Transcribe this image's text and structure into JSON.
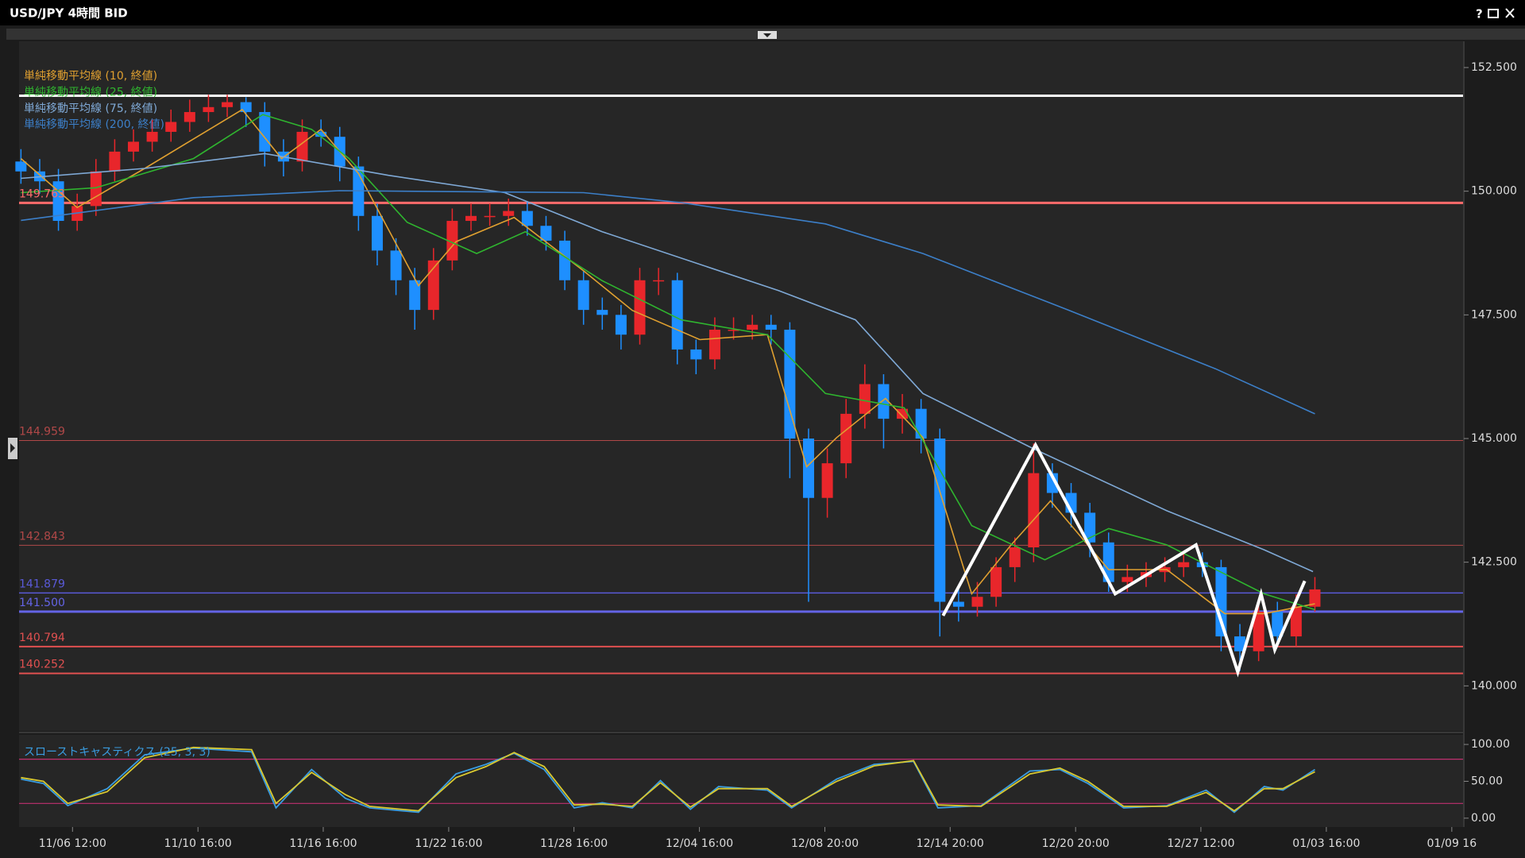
{
  "window_title": "USD/JPY 4時間 BID",
  "help_button": "?",
  "chart_data": [
    {
      "type": "candlestick",
      "xlim": [
        -0.1,
        76.9
      ],
      "ylim": [
        139.09,
        153.03
      ],
      "yticks": [
        {
          "value": 140,
          "label": "140.000"
        },
        {
          "value": 142.5,
          "label": "142.500"
        },
        {
          "value": 145,
          "label": "145.000"
        },
        {
          "value": 147.5,
          "label": "147.500"
        },
        {
          "value": 150,
          "label": "150.000"
        },
        {
          "value": 152.5,
          "label": "152.500"
        }
      ],
      "up_color": "#e8262b",
      "down_color": "#1e8fff",
      "x": [
        0,
        1,
        2,
        3,
        4,
        5,
        6,
        7,
        8,
        9,
        10,
        11,
        12,
        13,
        14,
        15,
        16,
        17,
        18,
        19,
        20,
        21,
        22,
        23,
        24,
        25,
        26,
        27,
        28,
        29,
        30,
        31,
        32,
        33,
        34,
        35,
        36,
        37,
        38,
        39,
        40,
        41,
        42,
        43,
        44,
        45,
        46,
        47,
        48,
        49,
        50,
        51,
        52,
        53,
        54,
        55,
        56,
        57,
        58,
        59,
        60,
        61,
        62,
        63,
        64,
        65,
        66,
        67,
        68,
        69
      ],
      "open": [
        150.6,
        150.4,
        150.2,
        149.4,
        149.7,
        150.4,
        150.8,
        151.0,
        151.2,
        151.4,
        151.6,
        151.7,
        151.8,
        151.6,
        150.8,
        150.6,
        151.2,
        151.1,
        150.5,
        149.5,
        148.8,
        148.2,
        147.6,
        148.6,
        149.4,
        149.5,
        149.5,
        149.6,
        149.3,
        149.0,
        148.2,
        147.6,
        147.5,
        147.1,
        148.2,
        148.2,
        146.8,
        146.6,
        147.2,
        147.2,
        147.3,
        147.2,
        145.0,
        143.8,
        144.5,
        145.5,
        146.1,
        145.4,
        145.6,
        145.0,
        141.7,
        141.6,
        141.8,
        142.4,
        142.8,
        144.3,
        143.9,
        143.5,
        142.9,
        142.1,
        142.2,
        142.3,
        142.4,
        142.5,
        142.4,
        141.0,
        140.7,
        141.5,
        141.0,
        141.6
      ],
      "high": [
        150.85,
        150.65,
        150.45,
        149.95,
        150.65,
        151.05,
        151.25,
        151.45,
        151.65,
        151.85,
        151.95,
        151.95,
        151.9,
        151.8,
        151.05,
        151.45,
        151.45,
        151.3,
        150.7,
        149.75,
        149.05,
        148.45,
        148.85,
        149.65,
        149.75,
        149.75,
        149.85,
        149.8,
        149.5,
        149.2,
        148.4,
        147.85,
        147.7,
        148.45,
        148.45,
        148.35,
        147.0,
        147.45,
        147.45,
        147.5,
        147.5,
        147.35,
        145.2,
        144.8,
        145.8,
        146.5,
        146.3,
        145.9,
        145.8,
        145.2,
        142.0,
        142.1,
        142.6,
        143.0,
        144.9,
        144.5,
        144.1,
        143.7,
        143.1,
        142.45,
        142.5,
        142.6,
        142.7,
        142.7,
        142.55,
        141.25,
        141.75,
        141.7,
        141.85,
        142.2
      ],
      "low": [
        150.15,
        149.95,
        149.2,
        149.2,
        149.5,
        150.2,
        150.6,
        150.8,
        151.0,
        151.2,
        151.4,
        151.5,
        151.3,
        150.5,
        150.3,
        150.4,
        150.9,
        150.2,
        149.2,
        148.5,
        147.9,
        147.2,
        147.4,
        148.4,
        149.2,
        149.3,
        149.3,
        149.1,
        148.8,
        148.0,
        147.3,
        147.2,
        146.8,
        146.9,
        147.9,
        146.5,
        146.3,
        146.4,
        147.0,
        147.0,
        146.9,
        144.2,
        141.7,
        143.4,
        144.2,
        145.2,
        144.8,
        145.1,
        144.7,
        141.0,
        141.3,
        141.4,
        141.6,
        142.1,
        142.5,
        143.6,
        143.2,
        142.6,
        141.9,
        141.9,
        142.0,
        142.1,
        142.2,
        142.2,
        140.7,
        140.3,
        140.5,
        140.8,
        140.8,
        141.5
      ],
      "close": [
        150.4,
        150.2,
        149.4,
        149.7,
        150.4,
        150.8,
        151.0,
        151.2,
        151.4,
        151.6,
        151.7,
        151.8,
        151.6,
        150.8,
        150.6,
        151.2,
        151.1,
        150.5,
        149.5,
        148.8,
        148.2,
        147.6,
        148.6,
        149.4,
        149.5,
        149.5,
        149.6,
        149.3,
        149.0,
        148.2,
        147.6,
        147.5,
        147.1,
        148.2,
        148.2,
        146.8,
        146.6,
        147.2,
        147.2,
        147.3,
        147.2,
        145.0,
        143.8,
        144.5,
        145.5,
        146.1,
        145.4,
        145.6,
        145.0,
        141.7,
        141.6,
        141.8,
        142.4,
        142.8,
        144.3,
        143.9,
        143.5,
        142.9,
        142.1,
        142.2,
        142.3,
        142.4,
        142.5,
        142.4,
        141.0,
        140.7,
        141.5,
        141.0,
        141.6,
        141.95
      ],
      "series": [
        {
          "name": "単純移動平均線 (10, 終値)",
          "color": "#e0a030",
          "x": [
            0,
            3,
            6.6,
            11.8,
            13.9,
            16,
            18,
            21.2,
            23.2,
            26.3,
            30,
            32.6,
            36.2,
            39.8,
            41.9,
            43.5,
            46.1,
            48.1,
            50.7,
            52.8,
            54.9,
            58,
            61.1,
            64.2,
            66.3,
            69
          ],
          "values": [
            150.66,
            149.67,
            150.46,
            151.65,
            150.66,
            151.25,
            150.36,
            148.09,
            148.98,
            149.47,
            148.39,
            147.59,
            147.0,
            147.1,
            144.43,
            145.02,
            145.81,
            145.02,
            141.86,
            142.85,
            143.74,
            142.35,
            142.35,
            141.46,
            141.46,
            141.66
          ]
        },
        {
          "name": "単純移動平均線 (25, 終値)",
          "color": "#2fb52f",
          "x": [
            0,
            4,
            9.2,
            12.9,
            15.5,
            17.5,
            20.6,
            24.3,
            26.9,
            31,
            35.2,
            39.8,
            42.9,
            47.1,
            50.7,
            54.6,
            58,
            61.1,
            66.3,
            69
          ],
          "values": [
            149.97,
            150.07,
            150.66,
            151.55,
            151.25,
            150.66,
            149.37,
            148.74,
            149.18,
            148.19,
            147.4,
            147.1,
            145.91,
            145.62,
            143.24,
            142.55,
            143.18,
            142.85,
            141.86,
            141.54
          ]
        },
        {
          "name": "単純移動平均線 (75, 終値)",
          "color": "#7fa9d6",
          "x": [
            0,
            6.6,
            13,
            19.6,
            25.8,
            31,
            40.4,
            44.5,
            48.1,
            53.8,
            61.1,
            66.3,
            68.9
          ],
          "values": [
            150.26,
            150.46,
            150.76,
            150.32,
            149.97,
            149.18,
            147.99,
            147.4,
            145.91,
            144.83,
            143.54,
            142.75,
            142.31
          ]
        },
        {
          "name": "単純移動平均線 (200, 終値)",
          "color": "#3c7fc8",
          "x": [
            0,
            9.2,
            17,
            30,
            35.2,
            42.9,
            48.1,
            55.9,
            63.7,
            69
          ],
          "values": [
            149.41,
            149.87,
            150.01,
            149.97,
            149.77,
            149.34,
            148.74,
            147.59,
            146.41,
            145.5
          ]
        }
      ],
      "levels": [
        {
          "value": 151.93,
          "color": "#ffffff",
          "width": 3
        },
        {
          "value": 149.763,
          "color": "#ff6b6b",
          "width": 3
        },
        {
          "value": 144.959,
          "color": "#b04848",
          "width": 1
        },
        {
          "value": 142.843,
          "color": "#b04848",
          "width": 1
        },
        {
          "value": 141.879,
          "color": "#5a5ad8",
          "width": 1.5
        },
        {
          "value": 141.5,
          "label": "141.500",
          "color": "#6464e6",
          "width": 3
        },
        {
          "value": 140.794,
          "color": "#e05050",
          "width": 2
        },
        {
          "value": 140.252,
          "color": "#e05050",
          "width": 2
        }
      ],
      "pattern": {
        "color": "#ffffff",
        "x": [
          49.17,
          54.1,
          58.35,
          62.66,
          64.89,
          66.13,
          66.86,
          68.46
        ],
        "values": [
          141.42,
          144.87,
          141.86,
          142.85,
          140.28,
          141.86,
          140.73,
          142.12
        ]
      }
    },
    {
      "type": "line",
      "title": "スローストキャスティクス (25, 3, 3)",
      "xlim": [
        -0.1,
        76.9
      ],
      "ylim": [
        -12,
        113
      ],
      "yticks": [
        {
          "value": 0,
          "label": "0.00"
        },
        {
          "value": 50,
          "label": "50.00"
        },
        {
          "value": 100,
          "label": "100.00"
        }
      ],
      "xticks": [
        {
          "value": 2.75,
          "label": "11/06 12:00"
        },
        {
          "value": 9.44,
          "label": "11/10 16:00"
        },
        {
          "value": 16.12,
          "label": "11/16 16:00"
        },
        {
          "value": 22.81,
          "label": "11/22 16:00"
        },
        {
          "value": 29.49,
          "label": "11/28 16:00"
        },
        {
          "value": 36.18,
          "label": "12/04 16:00"
        },
        {
          "value": 42.87,
          "label": "12/08 20:00"
        },
        {
          "value": 49.55,
          "label": "12/14 20:00"
        },
        {
          "value": 56.24,
          "label": "12/20 20:00"
        },
        {
          "value": 62.92,
          "label": "12/27 12:00"
        },
        {
          "value": 69.61,
          "label": "01/03 16:00"
        },
        {
          "value": 76.3,
          "label": "01/09 16"
        }
      ],
      "levels": [
        {
          "value": 80,
          "color": "#c03070"
        },
        {
          "value": 20,
          "color": "#c03070"
        }
      ],
      "x": [
        0,
        1.2,
        2.5,
        4.6,
        6.6,
        9.2,
        12.3,
        13.6,
        15.5,
        17.3,
        18.6,
        21.2,
        23.2,
        24.8,
        26.3,
        27.9,
        29.5,
        31,
        32.6,
        34.1,
        35.7,
        37.2,
        39.8,
        41.1,
        43.5,
        45.5,
        47.6,
        48.9,
        51.2,
        53.8,
        55.4,
        56.9,
        58.8,
        61.1,
        63.2,
        64.7,
        66.3,
        67.3,
        69
      ],
      "series": [
        {
          "color": "#3a9ce0",
          "values": [
            53,
            47,
            17,
            40,
            86,
            95,
            90,
            14,
            66,
            27,
            14,
            8,
            60,
            73,
            88,
            66,
            14,
            21,
            14,
            51,
            12,
            43,
            38,
            14,
            53,
            73,
            77,
            14,
            17,
            64,
            66,
            47,
            14,
            17,
            38,
            8,
            43,
            38,
            66
          ]
        },
        {
          "color": "#d8c830",
          "values": [
            55,
            50,
            20,
            36,
            82,
            96,
            93,
            20,
            62,
            32,
            16,
            10,
            55,
            70,
            89,
            70,
            18,
            19,
            16,
            48,
            15,
            40,
            40,
            16,
            50,
            71,
            78,
            18,
            16,
            60,
            68,
            50,
            16,
            16,
            35,
            10,
            40,
            40,
            63
          ]
        }
      ]
    }
  ]
}
